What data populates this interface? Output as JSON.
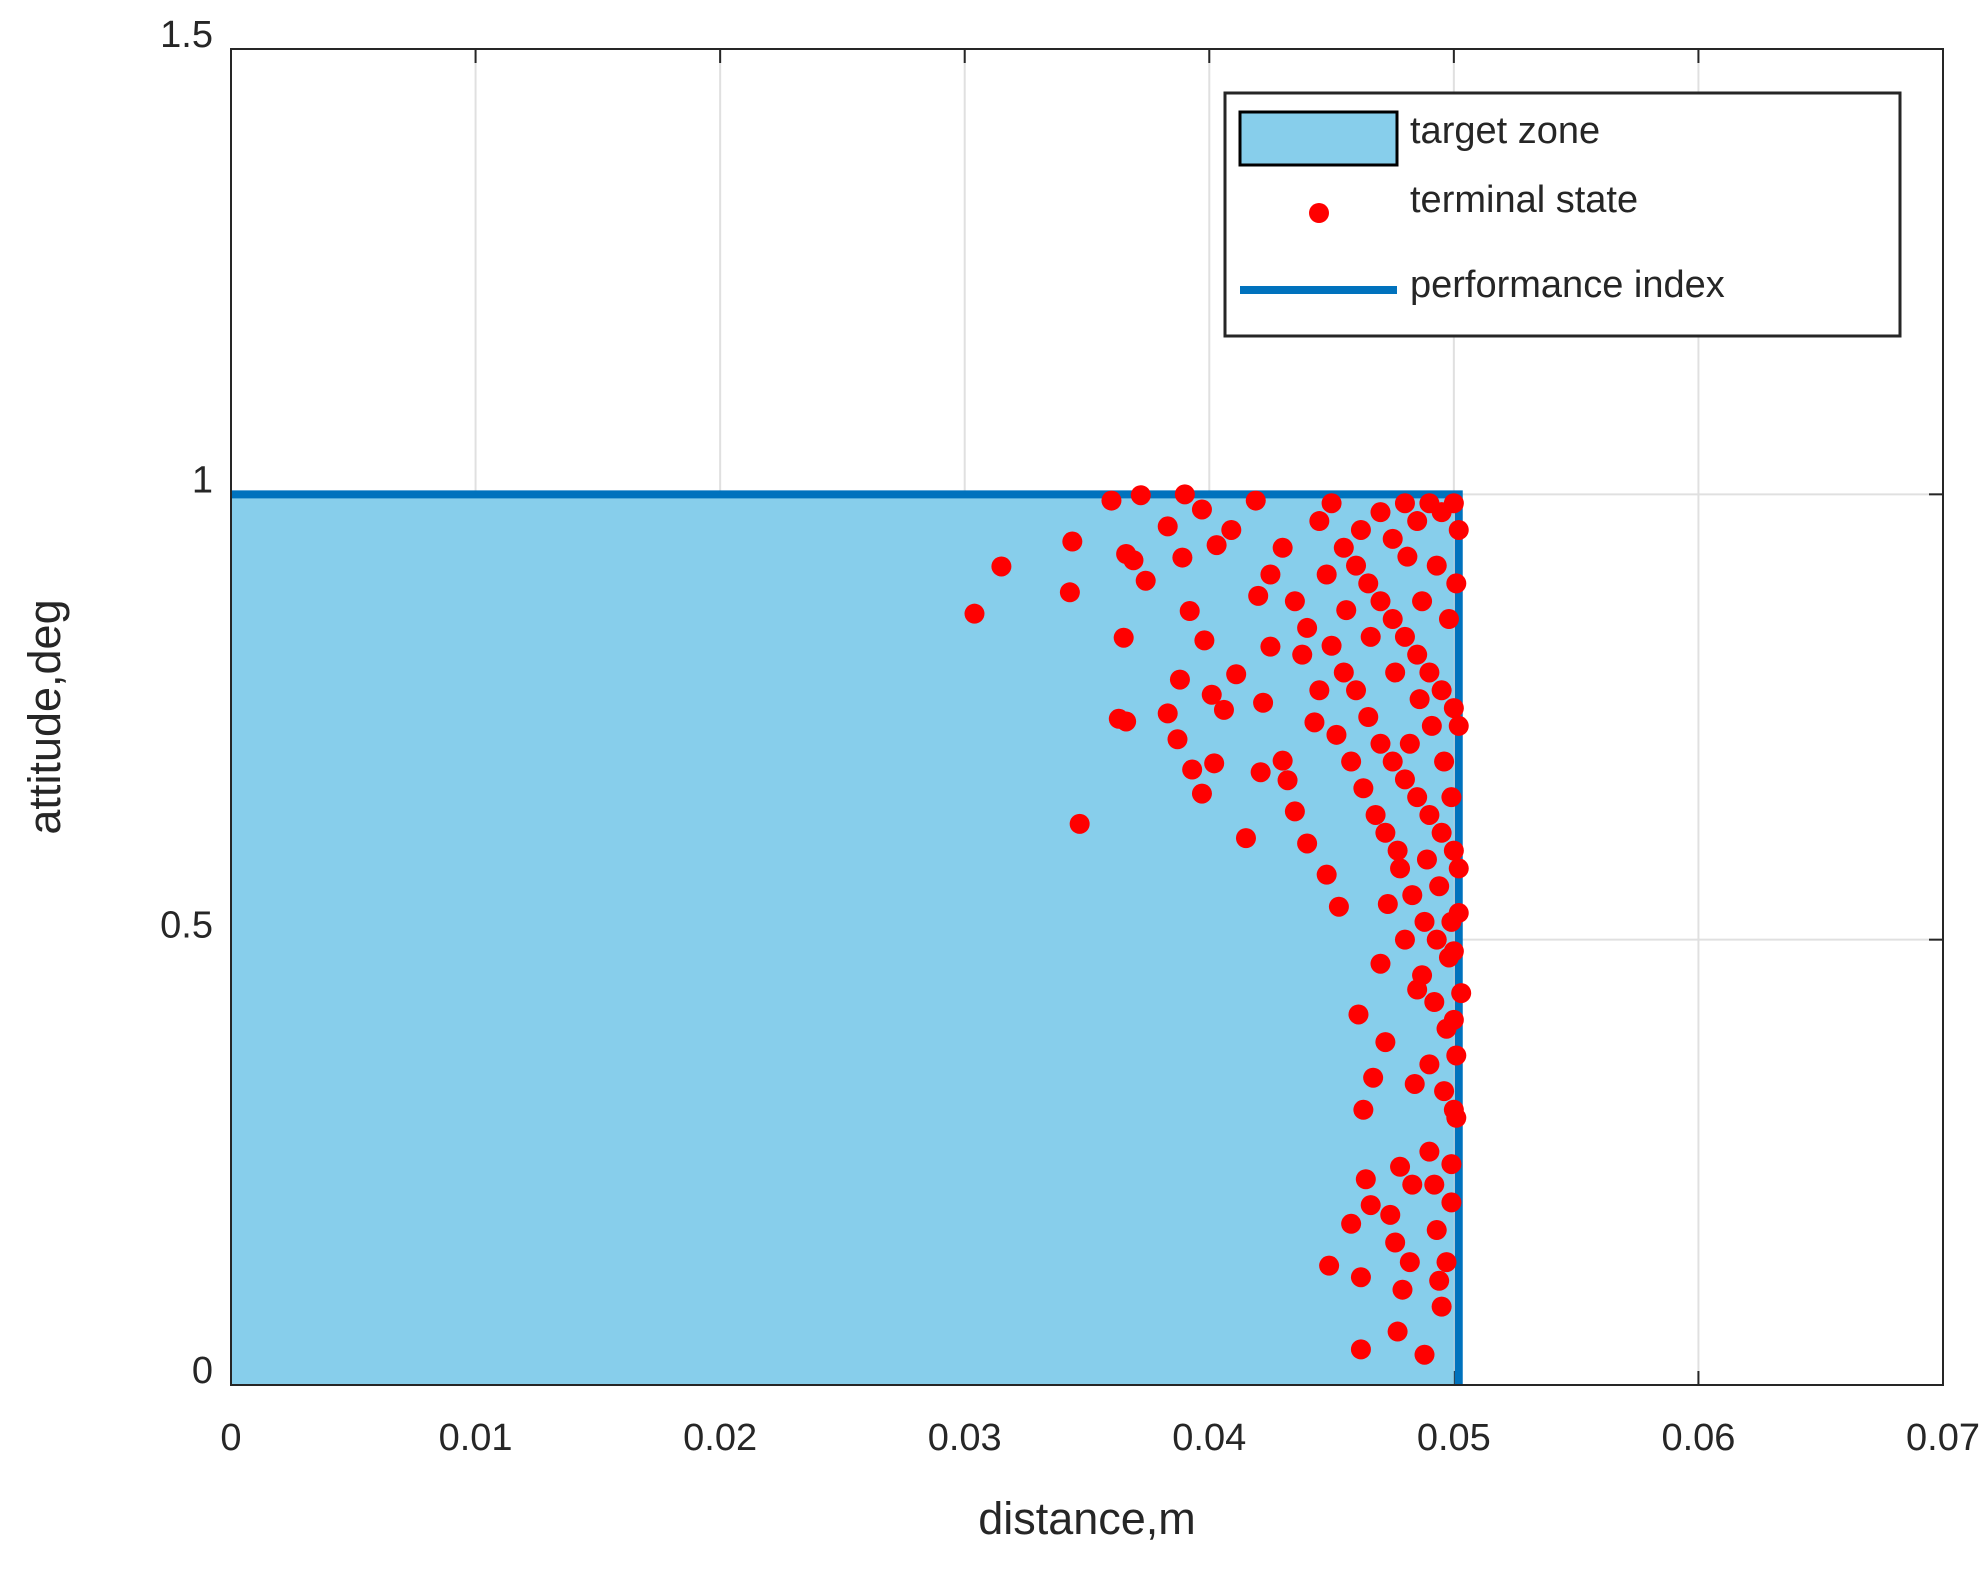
{
  "chart_data": {
    "type": "scatter",
    "xlabel": "distance,m",
    "ylabel": "attitude,deg",
    "xlim": [
      0,
      0.07
    ],
    "ylim": [
      0,
      1.5
    ],
    "xticks": [
      0,
      0.01,
      0.02,
      0.03,
      0.04,
      0.05,
      0.06,
      0.07
    ],
    "yticks": [
      0,
      0.5,
      1,
      1.5
    ],
    "grid": true,
    "legend": "upper right",
    "target_zone": {
      "name": "target zone",
      "color": "#87ceeb",
      "x": [
        0,
        0.05
      ],
      "y": [
        0,
        1
      ]
    },
    "performance_index": {
      "name": "performance index",
      "color": "#0072bd",
      "x": [
        0,
        0.0502,
        0.0502
      ],
      "y": [
        1,
        1,
        0
      ]
    },
    "series": [
      {
        "name": "terminal state",
        "color": "#ff0000",
        "x": [
          0.0304,
          0.0315,
          0.0344,
          0.0343,
          0.0347,
          0.036,
          0.0365,
          0.0363,
          0.0366,
          0.0366,
          0.0369,
          0.0372,
          0.0374,
          0.0383,
          0.0383,
          0.0387,
          0.0388,
          0.0389,
          0.039,
          0.0392,
          0.0393,
          0.0397,
          0.0397,
          0.0398,
          0.0401,
          0.0402,
          0.0403,
          0.0406,
          0.0409,
          0.0411,
          0.0415,
          0.0419,
          0.0421,
          0.0422,
          0.042,
          0.0425,
          0.043,
          0.0432,
          0.0435,
          0.044,
          0.0443,
          0.0448,
          0.0449,
          0.0453,
          0.0458,
          0.0461,
          0.0462,
          0.0462,
          0.0463,
          0.0464,
          0.0466,
          0.0467,
          0.047,
          0.0472,
          0.0474,
          0.0476,
          0.0477,
          0.0478,
          0.0479,
          0.0482,
          0.0483,
          0.0484,
          0.0485,
          0.0488,
          0.049,
          0.0492,
          0.0493,
          0.0494,
          0.0495,
          0.0497,
          0.0499,
          0.0499,
          0.05,
          0.05,
          0.047,
          0.0475,
          0.048,
          0.0485,
          0.049,
          0.0495,
          0.05,
          0.0502,
          0.0445,
          0.045,
          0.0455,
          0.046,
          0.0465,
          0.047,
          0.0475,
          0.048,
          0.0485,
          0.049,
          0.0495,
          0.05,
          0.0502,
          0.0435,
          0.044,
          0.045,
          0.0455,
          0.046,
          0.0465,
          0.047,
          0.0475,
          0.048,
          0.0485,
          0.049,
          0.0495,
          0.05,
          0.0502,
          0.0472,
          0.0478,
          0.0483,
          0.0488,
          0.0493,
          0.0498,
          0.0502,
          0.048,
          0.0487,
          0.0492,
          0.0497,
          0.0501,
          0.0496,
          0.0501,
          0.049,
          0.043,
          0.0425,
          0.0438,
          0.0445,
          0.0452,
          0.0458,
          0.0463,
          0.0468,
          0.0473,
          0.0477,
          0.0482,
          0.0487,
          0.0493,
          0.0498,
          0.0501,
          0.0496,
          0.0491,
          0.0486,
          0.0481,
          0.0476,
          0.0466,
          0.0456,
          0.0448,
          0.0462,
          0.0499,
          0.0494,
          0.0489,
          0.0503,
          0.05,
          0.0499
        ],
        "y": [
          0.866,
          0.919,
          0.947,
          0.89,
          0.63,
          0.993,
          0.839,
          0.748,
          0.745,
          0.933,
          0.926,
          0.999,
          0.903,
          0.964,
          0.754,
          0.725,
          0.792,
          0.929,
          1.0,
          0.869,
          0.691,
          0.664,
          0.983,
          0.836,
          0.775,
          0.698,
          0.943,
          0.758,
          0.96,
          0.798,
          0.614,
          0.993,
          0.688,
          0.766,
          0.886,
          0.829,
          0.701,
          0.679,
          0.644,
          0.608,
          0.744,
          0.573,
          0.134,
          0.537,
          0.181,
          0.416,
          0.121,
          0.04,
          0.309,
          0.231,
          0.202,
          0.345,
          0.473,
          0.385,
          0.191,
          0.16,
          0.06,
          0.245,
          0.107,
          0.138,
          0.225,
          0.338,
          0.444,
          0.034,
          0.262,
          0.225,
          0.174,
          0.117,
          0.088,
          0.138,
          0.205,
          0.248,
          0.309,
          0.487,
          0.98,
          0.95,
          0.99,
          0.97,
          0.99,
          0.98,
          0.99,
          0.96,
          0.97,
          0.99,
          0.94,
          0.92,
          0.9,
          0.88,
          0.86,
          0.84,
          0.82,
          0.8,
          0.78,
          0.76,
          0.74,
          0.88,
          0.85,
          0.83,
          0.8,
          0.78,
          0.75,
          0.72,
          0.7,
          0.68,
          0.66,
          0.64,
          0.62,
          0.6,
          0.58,
          0.62,
          0.58,
          0.55,
          0.52,
          0.5,
          0.48,
          0.53,
          0.5,
          0.46,
          0.43,
          0.4,
          0.37,
          0.33,
          0.3,
          0.36,
          0.94,
          0.91,
          0.82,
          0.78,
          0.73,
          0.7,
          0.67,
          0.64,
          0.54,
          0.6,
          0.72,
          0.88,
          0.92,
          0.86,
          0.9,
          0.7,
          0.74,
          0.77,
          0.93,
          0.8,
          0.84,
          0.87,
          0.91,
          0.96,
          0.66,
          0.56,
          0.59,
          0.44,
          0.41,
          0.52
        ]
      }
    ]
  }
}
